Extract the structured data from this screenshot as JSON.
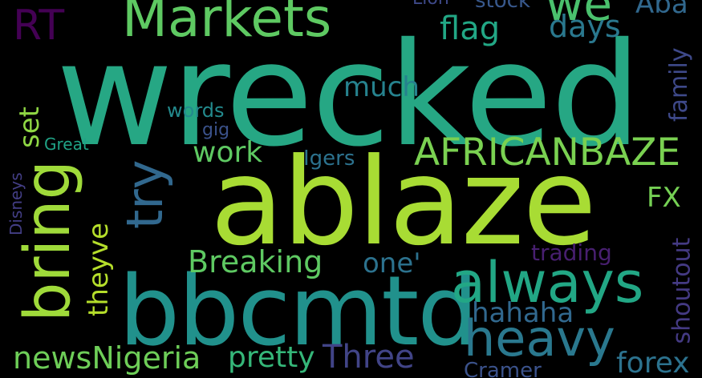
{
  "words": [
    {
      "text": "wrecked",
      "color": "#26a784"
    },
    {
      "text": "ablaze",
      "color": "#a8dc34"
    },
    {
      "text": "bbcmtd",
      "color": "#21918c"
    },
    {
      "text": "always",
      "color": "#22a785"
    },
    {
      "text": "heavy",
      "color": "#2a788e"
    },
    {
      "text": "AFRICANBAZE",
      "color": "#7ad151"
    },
    {
      "text": "Markets",
      "color": "#5ec962"
    },
    {
      "text": "bring",
      "color": "#9fda3a"
    },
    {
      "text": "try",
      "color": "#31688e"
    },
    {
      "text": "RT",
      "color": "#440154"
    },
    {
      "text": "we",
      "color": "#4ac16d"
    },
    {
      "text": "Aba",
      "color": "#31688e"
    },
    {
      "text": "flag",
      "color": "#22a785"
    },
    {
      "text": "days",
      "color": "#2a788e"
    },
    {
      "text": "much",
      "color": "#26828e"
    },
    {
      "text": "work",
      "color": "#5ec962"
    },
    {
      "text": "set",
      "color": "#8fd744"
    },
    {
      "text": "words",
      "color": "#238a8d"
    },
    {
      "text": "gig",
      "color": "#3b528b"
    },
    {
      "text": "Great",
      "color": "#20a386"
    },
    {
      "text": "Igers",
      "color": "#2c728e"
    },
    {
      "text": "Disneys",
      "color": "#433e85"
    },
    {
      "text": "FX",
      "color": "#75d054"
    },
    {
      "text": "family",
      "color": "#3e4989"
    },
    {
      "text": "theyve",
      "color": "#b5de2b"
    },
    {
      "text": "Breaking",
      "color": "#5ec962"
    },
    {
      "text": "one'",
      "color": "#2c728e"
    },
    {
      "text": "trading",
      "color": "#481f70"
    },
    {
      "text": "shoutout",
      "color": "#443a83"
    },
    {
      "text": "hahaha",
      "color": "#31688e"
    },
    {
      "text": "newsNigeria",
      "color": "#6ece58"
    },
    {
      "text": "pretty",
      "color": "#35b779"
    },
    {
      "text": "Three",
      "color": "#414487"
    },
    {
      "text": "forex",
      "color": "#2c728e"
    },
    {
      "text": "Cramer",
      "color": "#3b528b"
    },
    {
      "text": "Lion",
      "color": "#3e4989"
    },
    {
      "text": "stock",
      "color": "#38588c"
    }
  ]
}
